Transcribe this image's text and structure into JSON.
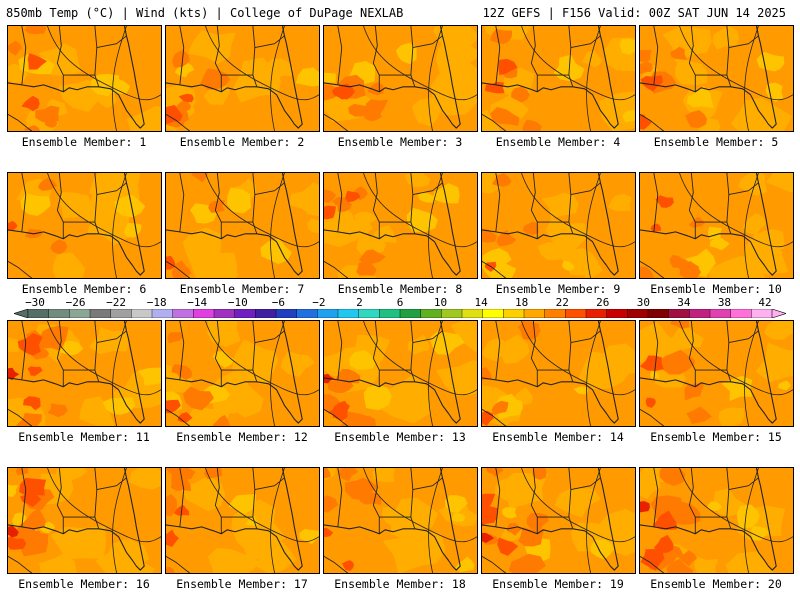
{
  "header": {
    "left_title": "850mb Temp (°C) | Wind (kts) | College of DuPage NEXLAB",
    "right_title": "12Z GEFS | F156 Valid: 00Z SAT JUN 14 2025"
  },
  "panels": [
    {
      "label": "Ensemble Member: 1",
      "hot": 0.45
    },
    {
      "label": "Ensemble Member: 2",
      "hot": 0.55
    },
    {
      "label": "Ensemble Member: 3",
      "hot": 0.6
    },
    {
      "label": "Ensemble Member: 4",
      "hot": 0.55
    },
    {
      "label": "Ensemble Member: 5",
      "hot": 0.5
    },
    {
      "label": "Ensemble Member: 6",
      "hot": 0.2
    },
    {
      "label": "Ensemble Member: 7",
      "hot": 0.3
    },
    {
      "label": "Ensemble Member: 8",
      "hot": 0.45
    },
    {
      "label": "Ensemble Member: 9",
      "hot": 0.25
    },
    {
      "label": "Ensemble Member: 10",
      "hot": 0.5
    },
    {
      "label": "Ensemble Member: 11",
      "hot": 0.7
    },
    {
      "label": "Ensemble Member: 12",
      "hot": 0.5
    },
    {
      "label": "Ensemble Member: 13",
      "hot": 0.65
    },
    {
      "label": "Ensemble Member: 14",
      "hot": 0.35
    },
    {
      "label": "Ensemble Member: 15",
      "hot": 0.6
    },
    {
      "label": "Ensemble Member: 16",
      "hot": 0.7
    },
    {
      "label": "Ensemble Member: 17",
      "hot": 0.45
    },
    {
      "label": "Ensemble Member: 18",
      "hot": 0.5
    },
    {
      "label": "Ensemble Member: 19",
      "hot": 0.75
    },
    {
      "label": "Ensemble Member: 20",
      "hot": 0.8
    }
  ],
  "colorbar": {
    "labels": [
      "−30",
      "−26",
      "−22",
      "−18",
      "−14",
      "−10",
      "−6",
      "−2",
      "2",
      "6",
      "10",
      "14",
      "18",
      "22",
      "26",
      "30",
      "34",
      "38",
      "42"
    ],
    "colors": [
      "#566e66",
      "#738c80",
      "#8ca696",
      "#7a7a7a",
      "#a0a0a0",
      "#c8c8c8",
      "#b0b0f0",
      "#c070e0",
      "#e040e0",
      "#a030c0",
      "#7020c0",
      "#4020a0",
      "#2040c0",
      "#2070e0",
      "#20a0f0",
      "#20c8f0",
      "#30d8c0",
      "#20c080",
      "#20a040",
      "#60b020",
      "#a0c820",
      "#e0e010",
      "#ffff00",
      "#ffd000",
      "#ffa800",
      "#ff8000",
      "#ff5000",
      "#e82000",
      "#c80000",
      "#a00000",
      "#800000",
      "#a01040",
      "#c02080",
      "#e040b0",
      "#ff70d8",
      "#ffb0f0"
    ]
  }
}
